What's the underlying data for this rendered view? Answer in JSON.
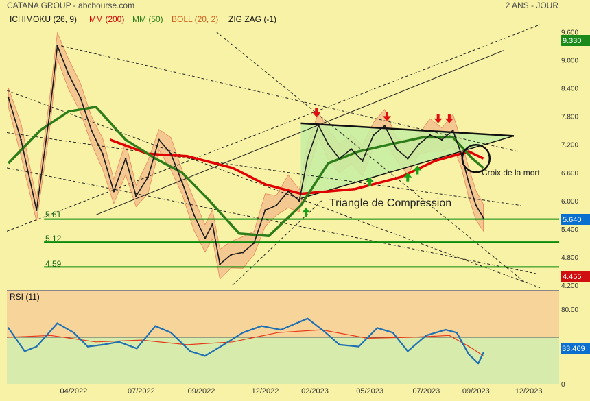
{
  "header": {
    "title": "CATANA GROUP - abcbourse.com",
    "period": "2 ANS - JOUR"
  },
  "indicators": {
    "ichimoku": "ICHIMOKU (26, 9)",
    "mm200": "MM (200)",
    "mm50": "MM (50)",
    "boll": "BOLL (20, 2)",
    "zigzag": "ZIG ZAG (-1)",
    "rsi": "RSI (11)"
  },
  "colors": {
    "background": "#f7f2a6",
    "price": "#1a1a1a",
    "mm200": "#e00000",
    "mm50": "#2e7d1a",
    "bollinger_fill": "#f3b98a",
    "triangle_fill": "#c6efa2",
    "support": "#0b8a0b",
    "rsi_line": "#1f6fb3",
    "rsi_signal": "#e63b1a",
    "rsi_upper_zone": "#f7d49a",
    "rsi_lower_zone": "#d6ebac",
    "price_tag": "#0b6fd0",
    "support_tag": "#1a8a1a",
    "low_tag": "#d01010",
    "arrow_up": "#18a018",
    "arrow_down": "#e01010"
  },
  "annotations": {
    "triangle": "Triangle de Compression",
    "death_cross": "Croix de la mort"
  },
  "levels": [
    {
      "label": "5.61",
      "value": 5.61
    },
    {
      "label": "5.12",
      "value": 5.12
    },
    {
      "label": "4.59",
      "value": 4.59
    }
  ],
  "tags": {
    "top": "9.330",
    "last": "5.640",
    "low": "4.455",
    "rsi": "33.469"
  },
  "chart_data": {
    "type": "line",
    "price_axis": {
      "ylim": [
        4.1,
        9.75
      ],
      "ticks": [
        "9.600",
        "9.000",
        "8.400",
        "7.800",
        "7.200",
        "6.600",
        "6.000",
        "5.400",
        "4.800",
        "4.200"
      ]
    },
    "rsi_axis": {
      "ylim": [
        0,
        100
      ],
      "ticks": [
        "80.00",
        "0"
      ],
      "level": 50
    },
    "x_ticks": [
      "04/2022",
      "07/2022",
      "09/2022",
      "12/2022",
      "02/2023",
      "05/2023",
      "07/2023",
      "09/2023",
      "12/2023"
    ],
    "price": [
      {
        "date": "2022-01-03",
        "value": 8.2
      },
      {
        "date": "2022-01-20",
        "value": 7.3
      },
      {
        "date": "2022-02-10",
        "value": 5.8
      },
      {
        "date": "2022-02-28",
        "value": 7.9
      },
      {
        "date": "2022-03-10",
        "value": 9.3
      },
      {
        "date": "2022-03-25",
        "value": 8.7
      },
      {
        "date": "2022-04-10",
        "value": 8.2
      },
      {
        "date": "2022-04-25",
        "value": 7.5
      },
      {
        "date": "2022-05-10",
        "value": 7.0
      },
      {
        "date": "2022-05-25",
        "value": 6.2
      },
      {
        "date": "2022-06-10",
        "value": 6.9
      },
      {
        "date": "2022-06-24",
        "value": 6.1
      },
      {
        "date": "2022-07-10",
        "value": 6.5
      },
      {
        "date": "2022-07-25",
        "value": 7.3
      },
      {
        "date": "2022-08-10",
        "value": 7.0
      },
      {
        "date": "2022-08-25",
        "value": 6.4
      },
      {
        "date": "2022-09-10",
        "value": 5.7
      },
      {
        "date": "2022-09-25",
        "value": 5.2
      },
      {
        "date": "2022-10-05",
        "value": 5.5
      },
      {
        "date": "2022-10-15",
        "value": 4.65
      },
      {
        "date": "2022-10-30",
        "value": 4.85
      },
      {
        "date": "2022-11-15",
        "value": 4.9
      },
      {
        "date": "2022-11-30",
        "value": 5.1
      },
      {
        "date": "2022-12-15",
        "value": 5.8
      },
      {
        "date": "2022-12-30",
        "value": 5.9
      },
      {
        "date": "2023-01-15",
        "value": 6.2
      },
      {
        "date": "2023-01-30",
        "value": 6.0
      },
      {
        "date": "2023-02-10",
        "value": 6.9
      },
      {
        "date": "2023-02-25",
        "value": 7.6
      },
      {
        "date": "2023-03-10",
        "value": 7.2
      },
      {
        "date": "2023-03-25",
        "value": 6.9
      },
      {
        "date": "2023-04-10",
        "value": 7.1
      },
      {
        "date": "2023-04-25",
        "value": 6.85
      },
      {
        "date": "2023-05-10",
        "value": 7.4
      },
      {
        "date": "2023-05-25",
        "value": 7.6
      },
      {
        "date": "2023-06-10",
        "value": 7.1
      },
      {
        "date": "2023-06-25",
        "value": 6.9
      },
      {
        "date": "2023-07-10",
        "value": 7.2
      },
      {
        "date": "2023-07-25",
        "value": 7.4
      },
      {
        "date": "2023-08-10",
        "value": 7.3
      },
      {
        "date": "2023-08-25",
        "value": 7.5
      },
      {
        "date": "2023-09-05",
        "value": 7.0
      },
      {
        "date": "2023-09-15",
        "value": 6.4
      },
      {
        "date": "2023-09-25",
        "value": 5.9
      },
      {
        "date": "2023-10-05",
        "value": 5.64
      }
    ],
    "mm200": [
      {
        "date": "2022-05-20",
        "value": 7.3
      },
      {
        "date": "2022-07-10",
        "value": 7.0
      },
      {
        "date": "2022-09-01",
        "value": 6.95
      },
      {
        "date": "2022-11-01",
        "value": 6.7
      },
      {
        "date": "2022-12-15",
        "value": 6.35
      },
      {
        "date": "2023-02-01",
        "value": 6.15
      },
      {
        "date": "2023-04-15",
        "value": 6.25
      },
      {
        "date": "2023-06-15",
        "value": 6.5
      },
      {
        "date": "2023-08-01",
        "value": 6.85
      },
      {
        "date": "2023-09-15",
        "value": 7.05
      },
      {
        "date": "2023-10-05",
        "value": 6.9
      }
    ],
    "mm50": [
      {
        "date": "2022-01-03",
        "value": 6.8
      },
      {
        "date": "2022-02-15",
        "value": 7.5
      },
      {
        "date": "2022-03-25",
        "value": 7.9
      },
      {
        "date": "2022-05-01",
        "value": 8.0
      },
      {
        "date": "2022-06-10",
        "value": 7.3
      },
      {
        "date": "2022-07-20",
        "value": 6.9
      },
      {
        "date": "2022-08-25",
        "value": 6.6
      },
      {
        "date": "2022-10-01",
        "value": 6.0
      },
      {
        "date": "2022-11-10",
        "value": 5.3
      },
      {
        "date": "2022-12-20",
        "value": 5.25
      },
      {
        "date": "2023-02-01",
        "value": 5.9
      },
      {
        "date": "2023-03-10",
        "value": 6.8
      },
      {
        "date": "2023-04-20",
        "value": 7.05
      },
      {
        "date": "2023-06-01",
        "value": 7.2
      },
      {
        "date": "2023-07-15",
        "value": 7.35
      },
      {
        "date": "2023-08-25",
        "value": 7.35
      },
      {
        "date": "2023-09-20",
        "value": 6.9
      },
      {
        "date": "2023-10-05",
        "value": 6.7
      }
    ],
    "rsi": [
      {
        "date": "2022-01-03",
        "value": 60
      },
      {
        "date": "2022-01-25",
        "value": 35
      },
      {
        "date": "2022-02-10",
        "value": 40
      },
      {
        "date": "2022-03-10",
        "value": 65
      },
      {
        "date": "2022-04-01",
        "value": 55
      },
      {
        "date": "2022-04-20",
        "value": 40
      },
      {
        "date": "2022-05-10",
        "value": 42
      },
      {
        "date": "2022-06-01",
        "value": 45
      },
      {
        "date": "2022-06-25",
        "value": 38
      },
      {
        "date": "2022-07-20",
        "value": 62
      },
      {
        "date": "2022-08-10",
        "value": 55
      },
      {
        "date": "2022-09-05",
        "value": 35
      },
      {
        "date": "2022-09-25",
        "value": 30
      },
      {
        "date": "2022-10-20",
        "value": 42
      },
      {
        "date": "2022-11-15",
        "value": 55
      },
      {
        "date": "2022-12-10",
        "value": 62
      },
      {
        "date": "2023-01-05",
        "value": 58
      },
      {
        "date": "2023-02-10",
        "value": 70
      },
      {
        "date": "2023-03-05",
        "value": 56
      },
      {
        "date": "2023-03-25",
        "value": 42
      },
      {
        "date": "2023-04-20",
        "value": 40
      },
      {
        "date": "2023-05-15",
        "value": 60
      },
      {
        "date": "2023-06-05",
        "value": 55
      },
      {
        "date": "2023-06-25",
        "value": 35
      },
      {
        "date": "2023-07-20",
        "value": 52
      },
      {
        "date": "2023-08-15",
        "value": 58
      },
      {
        "date": "2023-08-30",
        "value": 55
      },
      {
        "date": "2023-09-15",
        "value": 32
      },
      {
        "date": "2023-09-28",
        "value": 22
      },
      {
        "date": "2023-10-05",
        "value": 33.469
      }
    ],
    "rsi_signal": [
      {
        "date": "2022-01-03",
        "value": 50
      },
      {
        "date": "2022-03-01",
        "value": 52
      },
      {
        "date": "2022-05-01",
        "value": 45
      },
      {
        "date": "2022-07-01",
        "value": 47
      },
      {
        "date": "2022-09-01",
        "value": 42
      },
      {
        "date": "2022-11-01",
        "value": 45
      },
      {
        "date": "2023-01-01",
        "value": 55
      },
      {
        "date": "2023-03-01",
        "value": 58
      },
      {
        "date": "2023-05-01",
        "value": 49
      },
      {
        "date": "2023-07-01",
        "value": 50
      },
      {
        "date": "2023-08-20",
        "value": 52
      },
      {
        "date": "2023-09-20",
        "value": 38
      },
      {
        "date": "2023-10-05",
        "value": 30
      }
    ]
  }
}
